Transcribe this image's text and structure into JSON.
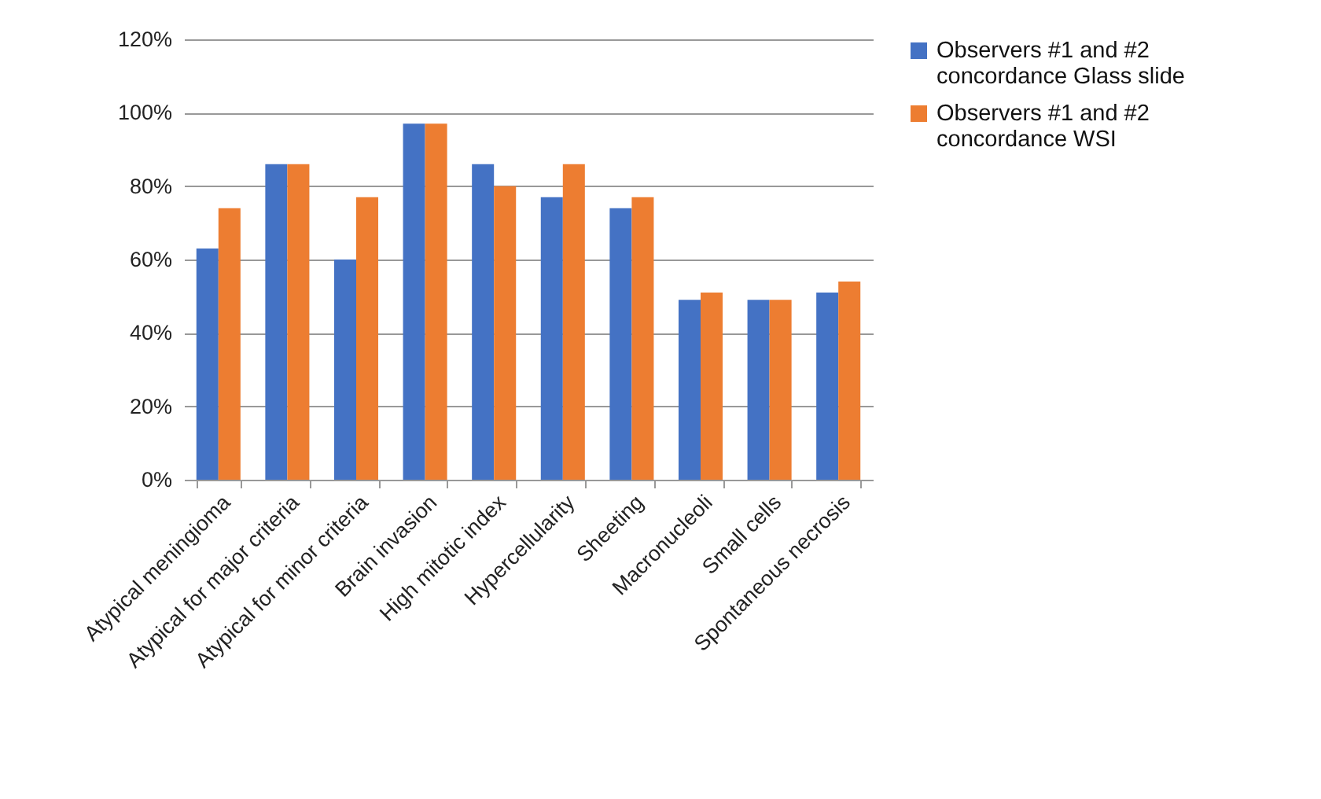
{
  "chart_data": {
    "type": "bar",
    "categories": [
      "Atypical meningioma",
      "Atypical for major criteria",
      "Atypical for minor criteria",
      "Brain invasion",
      "High mitotic index",
      "Hypercellularity",
      "Sheeting",
      "Macronucleoli",
      "Small cells",
      "Spontaneous necrosis"
    ],
    "series": [
      {
        "name": "Observers #1 and #2 concordance Glass slide",
        "color": "#4472c4",
        "values": [
          63,
          86,
          60,
          97,
          86,
          77,
          74,
          49,
          49,
          51
        ]
      },
      {
        "name": "Observers #1 and #2 concordance WSI",
        "color": "#ed7d31",
        "values": [
          74,
          86,
          77,
          97,
          80,
          86,
          77,
          51,
          49,
          54
        ]
      }
    ],
    "ylim": [
      0,
      120
    ],
    "yticks": [
      {
        "value": 0,
        "label": "0%"
      },
      {
        "value": 20,
        "label": "20%"
      },
      {
        "value": 40,
        "label": "40%"
      },
      {
        "value": 60,
        "label": "60%"
      },
      {
        "value": 80,
        "label": "80%"
      },
      {
        "value": 100,
        "label": "100%"
      },
      {
        "value": 120,
        "label": "120%"
      }
    ],
    "grid": "y",
    "legend": "right"
  }
}
